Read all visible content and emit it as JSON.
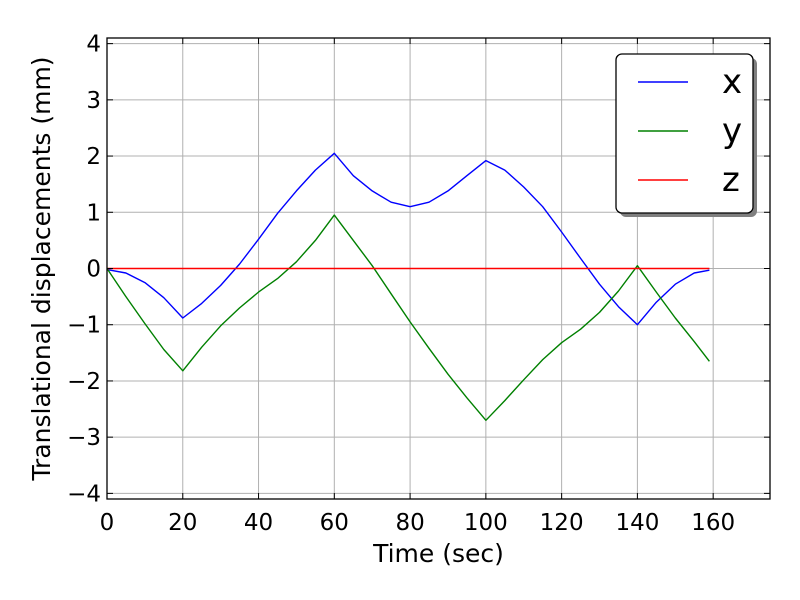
{
  "chart_data": {
    "type": "line",
    "xlabel": "Time (sec)",
    "ylabel": "Translational displacements (mm)",
    "xlim": [
      0,
      175
    ],
    "ylim": [
      -4.1,
      4.1
    ],
    "xticks": [
      0,
      20,
      40,
      60,
      80,
      100,
      120,
      140,
      160
    ],
    "yticks": [
      -4,
      -3,
      -2,
      -1,
      0,
      1,
      2,
      3,
      4
    ],
    "ytick_labels": [
      "−4",
      "−3",
      "−2",
      "−1",
      "0",
      "1",
      "2",
      "3",
      "4"
    ],
    "grid": true,
    "legend_position": "top-right",
    "series": [
      {
        "name": "x",
        "color": "#0000ff",
        "points": [
          [
            0,
            -0.02
          ],
          [
            5,
            -0.08
          ],
          [
            10,
            -0.25
          ],
          [
            15,
            -0.52
          ],
          [
            20,
            -0.88
          ],
          [
            25,
            -0.62
          ],
          [
            30,
            -0.3
          ],
          [
            35,
            0.08
          ],
          [
            40,
            0.52
          ],
          [
            45,
            0.98
          ],
          [
            50,
            1.38
          ],
          [
            55,
            1.75
          ],
          [
            60,
            2.05
          ],
          [
            65,
            1.65
          ],
          [
            70,
            1.38
          ],
          [
            75,
            1.18
          ],
          [
            80,
            1.1
          ],
          [
            85,
            1.18
          ],
          [
            90,
            1.38
          ],
          [
            95,
            1.65
          ],
          [
            100,
            1.92
          ],
          [
            105,
            1.75
          ],
          [
            110,
            1.45
          ],
          [
            115,
            1.1
          ],
          [
            120,
            0.65
          ],
          [
            125,
            0.18
          ],
          [
            130,
            -0.28
          ],
          [
            135,
            -0.68
          ],
          [
            140,
            -1.0
          ],
          [
            145,
            -0.6
          ],
          [
            150,
            -0.28
          ],
          [
            155,
            -0.08
          ],
          [
            159,
            -0.03
          ]
        ]
      },
      {
        "name": "y",
        "color": "#008000",
        "points": [
          [
            0,
            0
          ],
          [
            5,
            -0.5
          ],
          [
            10,
            -0.98
          ],
          [
            15,
            -1.44
          ],
          [
            20,
            -1.82
          ],
          [
            25,
            -1.4
          ],
          [
            30,
            -1.02
          ],
          [
            35,
            -0.7
          ],
          [
            40,
            -0.42
          ],
          [
            45,
            -0.18
          ],
          [
            50,
            0.12
          ],
          [
            55,
            0.5
          ],
          [
            60,
            0.95
          ],
          [
            65,
            0.5
          ],
          [
            70,
            0.05
          ],
          [
            75,
            -0.45
          ],
          [
            80,
            -0.95
          ],
          [
            85,
            -1.42
          ],
          [
            90,
            -1.88
          ],
          [
            95,
            -2.3
          ],
          [
            100,
            -2.7
          ],
          [
            105,
            -2.35
          ],
          [
            110,
            -1.98
          ],
          [
            115,
            -1.62
          ],
          [
            120,
            -1.32
          ],
          [
            125,
            -1.08
          ],
          [
            130,
            -0.78
          ],
          [
            135,
            -0.4
          ],
          [
            140,
            0.05
          ],
          [
            145,
            -0.42
          ],
          [
            150,
            -0.88
          ],
          [
            155,
            -1.3
          ],
          [
            159,
            -1.65
          ]
        ]
      },
      {
        "name": "z",
        "color": "#ff0000",
        "points": [
          [
            0,
            0
          ],
          [
            159,
            0
          ]
        ]
      }
    ]
  }
}
